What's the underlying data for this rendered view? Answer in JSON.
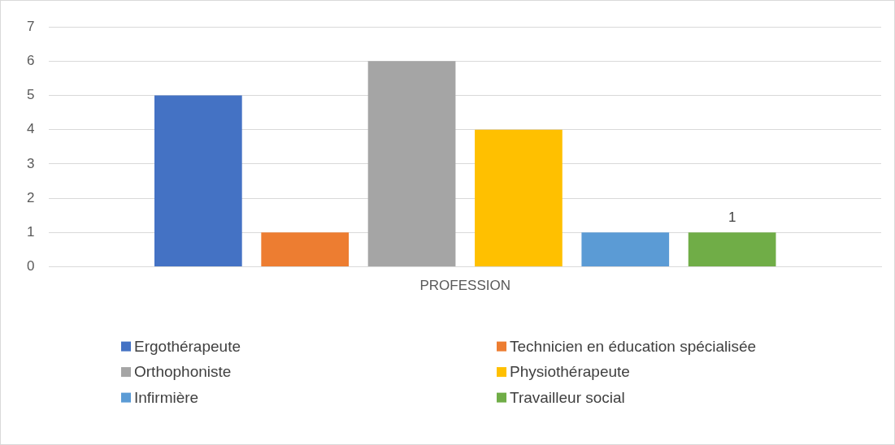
{
  "chart_data": {
    "type": "bar",
    "categories": [
      "PROFESSION"
    ],
    "series": [
      {
        "name": "Ergothérapeute",
        "color": "#4472c4",
        "values": [
          5
        ]
      },
      {
        "name": "Technicien en éducation spécialisée",
        "color": "#ed7d31",
        "values": [
          1
        ]
      },
      {
        "name": "Orthophoniste",
        "color": "#a5a5a5",
        "values": [
          6
        ]
      },
      {
        "name": "Physiothérapeute",
        "color": "#ffc000",
        "values": [
          4
        ]
      },
      {
        "name": "Infirmière",
        "color": "#5b9bd5",
        "values": [
          1
        ]
      },
      {
        "name": "Travailleur social",
        "color": "#70ad47",
        "values": [
          1
        ],
        "value_labels": [
          "1"
        ]
      }
    ],
    "ylim": [
      0,
      7
    ],
    "yticks": [
      0,
      1,
      2,
      3,
      4,
      5,
      6,
      7
    ],
    "grid": "y",
    "legend": "bottom"
  }
}
